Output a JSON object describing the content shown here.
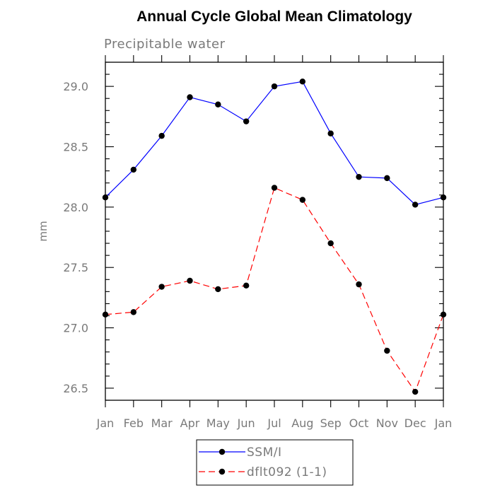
{
  "chart_data": {
    "type": "line",
    "title": "Annual Cycle Global Mean Climatology",
    "subtitle": "Precipitable water",
    "xlabel": "",
    "ylabel": "mm",
    "categories": [
      "Jan",
      "Feb",
      "Mar",
      "Apr",
      "May",
      "Jun",
      "Jul",
      "Aug",
      "Sep",
      "Oct",
      "Nov",
      "Dec",
      "Jan"
    ],
    "ylim": [
      26.4,
      29.2
    ],
    "yticks": [
      "26.5",
      "27.0",
      "27.5",
      "28.0",
      "28.5",
      "29.0"
    ],
    "grid": false,
    "legend_position": "bottom",
    "series": [
      {
        "name": "SSM/I",
        "color": "#0000ff",
        "dash": "solid",
        "marker": "filled-circle",
        "values": [
          28.08,
          28.31,
          28.59,
          28.91,
          28.85,
          28.71,
          29.0,
          29.04,
          28.61,
          28.25,
          28.24,
          28.02,
          28.08
        ]
      },
      {
        "name": "dflt092 (1-1)",
        "color": "#ff0000",
        "dash": "dashed",
        "marker": "filled-circle",
        "values": [
          27.11,
          27.13,
          27.34,
          27.39,
          27.32,
          27.35,
          28.16,
          28.06,
          27.7,
          27.36,
          26.81,
          26.47,
          27.11
        ]
      }
    ]
  }
}
